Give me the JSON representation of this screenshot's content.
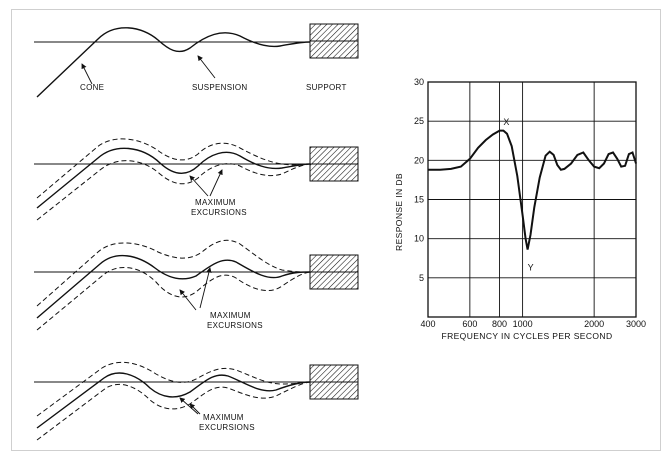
{
  "diagram": {
    "panel1": {
      "labels": {
        "cone": "CONE",
        "suspension": "SUSPENSION",
        "support": "SUPPORT"
      }
    },
    "panel2": {
      "label_line1": "MAXIMUM",
      "label_line2": "EXCURSIONS"
    },
    "panel3": {
      "label_line1": "MAXIMUM",
      "label_line2": "EXCURSIONS"
    },
    "panel4": {
      "label_line1": "MAXIMUM",
      "label_line2": "EXCURSIONS"
    }
  },
  "chart_data": {
    "type": "line",
    "xlabel": "FREQUENCY IN CYCLES PER SECOND",
    "ylabel": "RESPONSE IN DB",
    "x_scale": "log",
    "xlim": [
      400,
      3000
    ],
    "ylim": [
      0,
      30
    ],
    "x_ticks": [
      400,
      600,
      800,
      1000,
      2000,
      3000
    ],
    "x_tick_labels": [
      "400",
      "600",
      "800",
      "1000",
      "2000",
      "3000"
    ],
    "y_ticks": [
      5,
      10,
      15,
      20,
      25,
      30
    ],
    "y_tick_labels": [
      "5",
      "10",
      "15",
      "20",
      "25",
      "30"
    ],
    "grid": true,
    "annotations": [
      {
        "text": "X",
        "x": 830,
        "y": 24
      },
      {
        "text": "Y",
        "x": 1050,
        "y": 8
      }
    ],
    "series": [
      {
        "x": [
          400,
          450,
          500,
          550,
          600,
          650,
          700,
          750,
          800,
          830,
          860,
          900,
          950,
          1000,
          1030,
          1050,
          1080,
          1120,
          1180,
          1250,
          1300,
          1350,
          1400,
          1450,
          1500,
          1600,
          1700,
          1800,
          1900,
          2000,
          2100,
          2200,
          2300,
          2400,
          2500,
          2600,
          2700,
          2800,
          2900,
          3000
        ],
        "y": [
          18.8,
          18.8,
          18.9,
          19.2,
          20.2,
          21.6,
          22.6,
          23.3,
          23.8,
          23.8,
          23.4,
          21.8,
          18.0,
          13.0,
          10.0,
          8.6,
          10.5,
          14.0,
          17.8,
          20.6,
          21.1,
          20.7,
          19.4,
          18.8,
          18.9,
          19.6,
          20.7,
          21.0,
          20.0,
          19.2,
          19.0,
          19.6,
          20.8,
          21.0,
          20.2,
          19.2,
          19.3,
          20.8,
          21.0,
          19.6
        ]
      }
    ]
  }
}
